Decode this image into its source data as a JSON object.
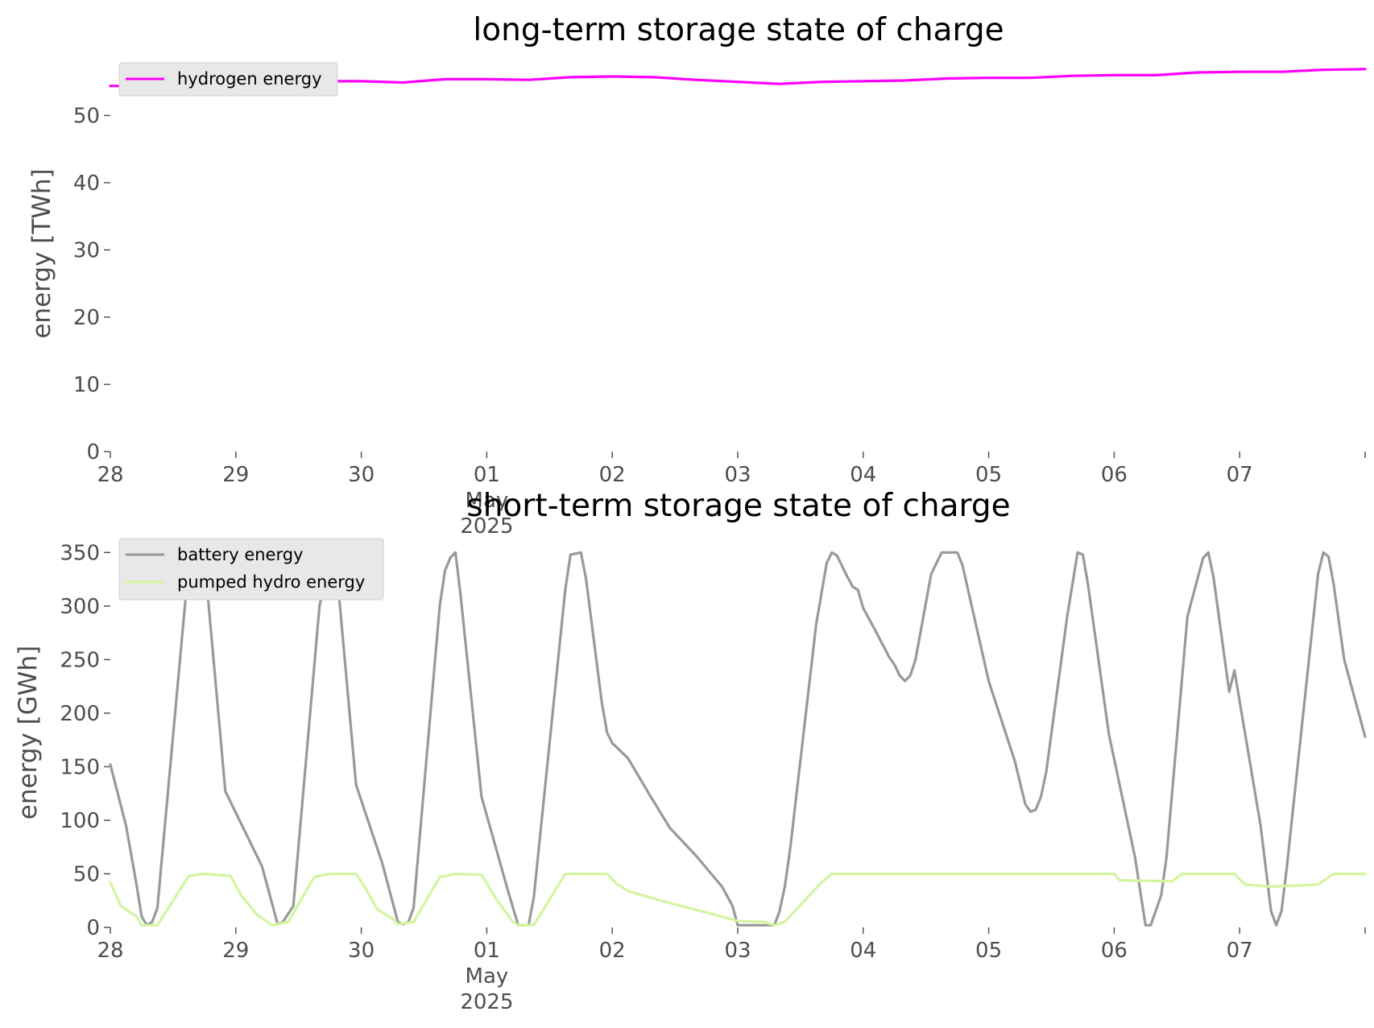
{
  "chart_data": [
    {
      "type": "line",
      "title": "long-term storage state of charge",
      "ylabel": "energy [TWh]",
      "xlabel": "",
      "ylim": [
        0,
        57
      ],
      "yticks": [
        0,
        10,
        20,
        30,
        40,
        50
      ],
      "xrange": [
        "2025-04-28",
        "2025-05-08"
      ],
      "xticks": [
        {
          "date": "2025-04-28",
          "lines": [
            "28"
          ]
        },
        {
          "date": "2025-04-29",
          "lines": [
            "29"
          ]
        },
        {
          "date": "2025-04-30",
          "lines": [
            "30"
          ]
        },
        {
          "date": "2025-05-01",
          "lines": [
            "01",
            "May",
            "2025"
          ]
        },
        {
          "date": "2025-05-02",
          "lines": [
            "02"
          ]
        },
        {
          "date": "2025-05-03",
          "lines": [
            "03"
          ]
        },
        {
          "date": "2025-05-04",
          "lines": [
            "04"
          ]
        },
        {
          "date": "2025-05-05",
          "lines": [
            "05"
          ]
        },
        {
          "date": "2025-05-06",
          "lines": [
            "06"
          ]
        },
        {
          "date": "2025-05-07",
          "lines": [
            "07"
          ]
        },
        {
          "date": "2025-05-08",
          "lines": [
            ""
          ]
        }
      ],
      "legend_position": "upper-left",
      "grid": false,
      "series": [
        {
          "name": "hydrogen energy",
          "color": "#ff00ff",
          "points": [
            [
              "2025-04-28 00:00",
              54.4
            ],
            [
              "2025-04-28 08:00",
              54.3
            ],
            [
              "2025-04-28 16:00",
              54.9
            ],
            [
              "2025-04-29 00:00",
              55.0
            ],
            [
              "2025-04-29 08:00",
              54.7
            ],
            [
              "2025-04-29 16:00",
              55.1
            ],
            [
              "2025-04-30 00:00",
              55.1
            ],
            [
              "2025-04-30 08:00",
              54.9
            ],
            [
              "2025-04-30 16:00",
              55.4
            ],
            [
              "2025-05-01 00:00",
              55.4
            ],
            [
              "2025-05-01 08:00",
              55.3
            ],
            [
              "2025-05-01 16:00",
              55.7
            ],
            [
              "2025-05-02 00:00",
              55.8
            ],
            [
              "2025-05-02 08:00",
              55.7
            ],
            [
              "2025-05-02 16:00",
              55.3
            ],
            [
              "2025-05-03 00:00",
              55.0
            ],
            [
              "2025-05-03 08:00",
              54.7
            ],
            [
              "2025-05-03 16:00",
              55.0
            ],
            [
              "2025-05-04 00:00",
              55.1
            ],
            [
              "2025-05-04 08:00",
              55.2
            ],
            [
              "2025-05-04 16:00",
              55.5
            ],
            [
              "2025-05-05 00:00",
              55.6
            ],
            [
              "2025-05-05 08:00",
              55.6
            ],
            [
              "2025-05-05 16:00",
              55.9
            ],
            [
              "2025-05-06 00:00",
              56.0
            ],
            [
              "2025-05-06 08:00",
              56.0
            ],
            [
              "2025-05-06 16:00",
              56.4
            ],
            [
              "2025-05-07 00:00",
              56.5
            ],
            [
              "2025-05-07 08:00",
              56.5
            ],
            [
              "2025-05-07 16:00",
              56.8
            ],
            [
              "2025-05-08 00:00",
              56.9
            ]
          ]
        }
      ]
    },
    {
      "type": "line",
      "title": "short-term storage state of charge",
      "ylabel": "energy [GWh]",
      "xlabel": "",
      "ylim": [
        0,
        360
      ],
      "yticks": [
        0,
        50,
        100,
        150,
        200,
        250,
        300,
        350
      ],
      "xrange": [
        "2025-04-28",
        "2025-05-08"
      ],
      "xticks": [
        {
          "date": "2025-04-28",
          "lines": [
            "28"
          ]
        },
        {
          "date": "2025-04-29",
          "lines": [
            "29"
          ]
        },
        {
          "date": "2025-04-30",
          "lines": [
            "30"
          ]
        },
        {
          "date": "2025-05-01",
          "lines": [
            "01",
            "May",
            "2025"
          ]
        },
        {
          "date": "2025-05-02",
          "lines": [
            "02"
          ]
        },
        {
          "date": "2025-05-03",
          "lines": [
            "03"
          ]
        },
        {
          "date": "2025-05-04",
          "lines": [
            "04"
          ]
        },
        {
          "date": "2025-05-05",
          "lines": [
            "05"
          ]
        },
        {
          "date": "2025-05-06",
          "lines": [
            "06"
          ]
        },
        {
          "date": "2025-05-07",
          "lines": [
            "07"
          ]
        },
        {
          "date": "2025-05-08",
          "lines": [
            ""
          ]
        }
      ],
      "legend_position": "upper-left",
      "grid": false,
      "series": [
        {
          "name": "battery energy",
          "color": "#999999",
          "points": [
            [
              "2025-04-28 00:00",
              152
            ],
            [
              "2025-04-28 03:00",
              95
            ],
            [
              "2025-04-28 05:00",
              40
            ],
            [
              "2025-04-28 06:00",
              10
            ],
            [
              "2025-04-28 07:00",
              2
            ],
            [
              "2025-04-28 08:00",
              5
            ],
            [
              "2025-04-28 09:00",
              18
            ],
            [
              "2025-04-28 15:00",
              340
            ],
            [
              "2025-04-28 17:00",
              350
            ],
            [
              "2025-04-28 18:00",
              345
            ],
            [
              "2025-04-28 22:00",
              127
            ],
            [
              "2025-04-29 05:00",
              57
            ],
            [
              "2025-04-29 08:00",
              3
            ],
            [
              "2025-04-29 09:00",
              5
            ],
            [
              "2025-04-29 11:00",
              20
            ],
            [
              "2025-04-29 16:00",
              300
            ],
            [
              "2025-04-29 18:00",
              345
            ],
            [
              "2025-04-29 19:00",
              350
            ],
            [
              "2025-04-29 23:00",
              133
            ],
            [
              "2025-04-30 04:00",
              60
            ],
            [
              "2025-04-30 07:00",
              5
            ],
            [
              "2025-04-30 08:00",
              3
            ],
            [
              "2025-04-30 09:00",
              5
            ],
            [
              "2025-04-30 10:00",
              18
            ],
            [
              "2025-04-30 15:00",
              300
            ],
            [
              "2025-04-30 16:00",
              333
            ],
            [
              "2025-04-30 17:00",
              345
            ],
            [
              "2025-04-30 18:00",
              350
            ],
            [
              "2025-04-30 19:00",
              310
            ],
            [
              "2025-04-30 23:00",
              122
            ],
            [
              "2025-05-01 04:00",
              35
            ],
            [
              "2025-05-01 06:00",
              2
            ],
            [
              "2025-05-01 08:00",
              2
            ],
            [
              "2025-05-01 09:00",
              28
            ],
            [
              "2025-05-01 15:00",
              315
            ],
            [
              "2025-05-01 16:00",
              348
            ],
            [
              "2025-05-01 18:00",
              350
            ],
            [
              "2025-05-01 19:00",
              325
            ],
            [
              "2025-05-01 22:00",
              210
            ],
            [
              "2025-05-01 23:00",
              182
            ],
            [
              "2025-05-02 00:00",
              172
            ],
            [
              "2025-05-02 03:00",
              158
            ],
            [
              "2025-05-02 07:00",
              125
            ],
            [
              "2025-05-02 11:00",
              93
            ],
            [
              "2025-05-02 16:00",
              67
            ],
            [
              "2025-05-02 21:00",
              38
            ],
            [
              "2025-05-02 23:00",
              20
            ],
            [
              "2025-05-03 00:00",
              2
            ],
            [
              "2025-05-03 07:00",
              2
            ],
            [
              "2025-05-03 08:00",
              15
            ],
            [
              "2025-05-03 09:00",
              38
            ],
            [
              "2025-05-03 10:00",
              72
            ],
            [
              "2025-05-03 15:00",
              283
            ],
            [
              "2025-05-03 17:00",
              340
            ],
            [
              "2025-05-03 18:00",
              350
            ],
            [
              "2025-05-03 19:00",
              347
            ],
            [
              "2025-05-03 21:00",
              327
            ],
            [
              "2025-05-03 22:00",
              318
            ],
            [
              "2025-05-03 23:00",
              315
            ],
            [
              "2025-05-04 00:00",
              298
            ],
            [
              "2025-05-04 02:00",
              280
            ],
            [
              "2025-05-04 05:00",
              252
            ],
            [
              "2025-05-04 06:00",
              245
            ],
            [
              "2025-05-04 07:00",
              235
            ],
            [
              "2025-05-04 08:00",
              230
            ],
            [
              "2025-05-04 09:00",
              235
            ],
            [
              "2025-05-04 10:00",
              250
            ],
            [
              "2025-05-04 13:00",
              330
            ],
            [
              "2025-05-04 15:00",
              350
            ],
            [
              "2025-05-04 18:00",
              350
            ],
            [
              "2025-05-04 19:00",
              338
            ],
            [
              "2025-05-05 00:00",
              230
            ],
            [
              "2025-05-05 05:00",
              155
            ],
            [
              "2025-05-05 07:00",
              115
            ],
            [
              "2025-05-05 08:00",
              108
            ],
            [
              "2025-05-05 09:00",
              110
            ],
            [
              "2025-05-05 10:00",
              122
            ],
            [
              "2025-05-05 11:00",
              145
            ],
            [
              "2025-05-05 15:00",
              290
            ],
            [
              "2025-05-05 17:00",
              350
            ],
            [
              "2025-05-05 18:00",
              348
            ],
            [
              "2025-05-05 19:00",
              320
            ],
            [
              "2025-05-05 23:00",
              180
            ],
            [
              "2025-05-06 04:00",
              65
            ],
            [
              "2025-05-06 06:00",
              2
            ],
            [
              "2025-05-06 07:00",
              2
            ],
            [
              "2025-05-06 09:00",
              30
            ],
            [
              "2025-05-06 10:00",
              65
            ],
            [
              "2025-05-06 14:00",
              290
            ],
            [
              "2025-05-06 17:00",
              345
            ],
            [
              "2025-05-06 18:00",
              350
            ],
            [
              "2025-05-06 19:00",
              327
            ],
            [
              "2025-05-06 22:00",
              220
            ],
            [
              "2025-05-06 23:00",
              240
            ],
            [
              "2025-05-07 04:00",
              95
            ],
            [
              "2025-05-07 06:00",
              15
            ],
            [
              "2025-05-07 07:00",
              2
            ],
            [
              "2025-05-07 08:00",
              15
            ],
            [
              "2025-05-07 09:00",
              55
            ],
            [
              "2025-05-07 15:00",
              330
            ],
            [
              "2025-05-07 16:00",
              350
            ],
            [
              "2025-05-07 17:00",
              346
            ],
            [
              "2025-05-07 18:00",
              320
            ],
            [
              "2025-05-07 20:00",
              250
            ],
            [
              "2025-05-08 00:00",
              178
            ]
          ]
        },
        {
          "name": "pumped hydro energy",
          "color": "#d2f5a0",
          "points": [
            [
              "2025-04-28 00:00",
              42
            ],
            [
              "2025-04-28 02:00",
              20
            ],
            [
              "2025-04-28 05:00",
              10
            ],
            [
              "2025-04-28 06:00",
              2
            ],
            [
              "2025-04-28 09:00",
              2
            ],
            [
              "2025-04-28 15:00",
              48
            ],
            [
              "2025-04-28 18:00",
              50
            ],
            [
              "2025-04-28 23:00",
              48
            ],
            [
              "2025-04-29 01:00",
              30
            ],
            [
              "2025-04-29 04:00",
              12
            ],
            [
              "2025-04-29 07:00",
              2
            ],
            [
              "2025-04-29 10:00",
              5
            ],
            [
              "2025-04-29 15:00",
              47
            ],
            [
              "2025-04-29 18:00",
              50
            ],
            [
              "2025-04-29 23:00",
              50
            ],
            [
              "2025-04-30 01:00",
              35
            ],
            [
              "2025-04-30 03:00",
              17
            ],
            [
              "2025-04-30 06:00",
              8
            ],
            [
              "2025-04-30 07:00",
              3
            ],
            [
              "2025-04-30 10:00",
              5
            ],
            [
              "2025-04-30 15:00",
              47
            ],
            [
              "2025-04-30 18:00",
              50
            ],
            [
              "2025-04-30 23:00",
              49
            ],
            [
              "2025-05-01 02:00",
              25
            ],
            [
              "2025-05-01 05:00",
              5
            ],
            [
              "2025-05-01 06:00",
              2
            ],
            [
              "2025-05-01 09:00",
              2
            ],
            [
              "2025-05-01 15:00",
              50
            ],
            [
              "2025-05-01 23:00",
              50
            ],
            [
              "2025-05-02 01:00",
              40
            ],
            [
              "2025-05-02 03:00",
              34
            ],
            [
              "2025-05-02 10:00",
              24
            ],
            [
              "2025-05-02 18:00",
              14
            ],
            [
              "2025-05-03 00:00",
              6
            ],
            [
              "2025-05-03 05:00",
              5
            ],
            [
              "2025-05-03 07:00",
              2
            ],
            [
              "2025-05-03 09:00",
              5
            ],
            [
              "2025-05-03 16:00",
              42
            ],
            [
              "2025-05-03 18:00",
              50
            ],
            [
              "2025-05-05 23:59",
              50
            ],
            [
              "2025-05-06 01:00",
              44
            ],
            [
              "2025-05-06 11:00",
              43
            ],
            [
              "2025-05-06 13:00",
              50
            ],
            [
              "2025-05-06 23:00",
              50
            ],
            [
              "2025-05-07 01:00",
              40
            ],
            [
              "2025-05-07 06:00",
              38
            ],
            [
              "2025-05-07 15:00",
              40
            ],
            [
              "2025-05-07 18:00",
              50
            ],
            [
              "2025-05-08 00:00",
              50
            ]
          ]
        }
      ]
    }
  ]
}
